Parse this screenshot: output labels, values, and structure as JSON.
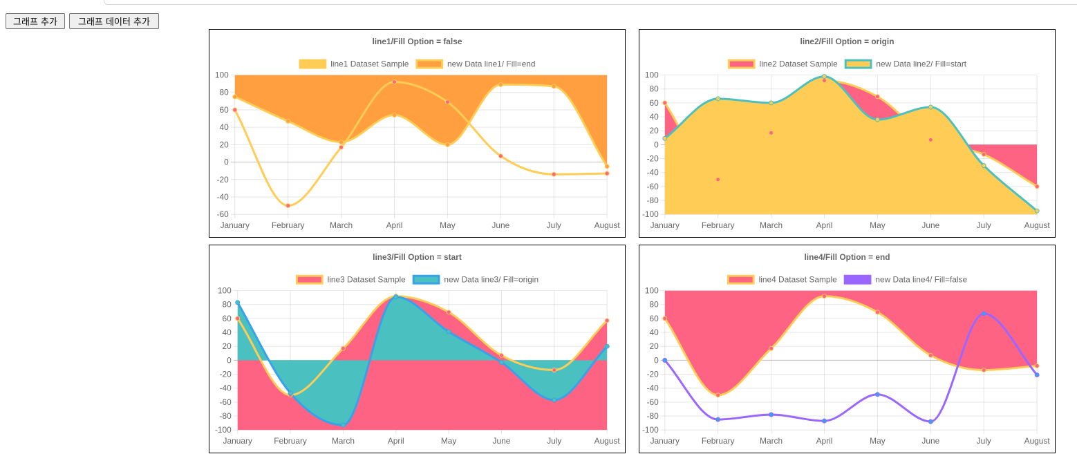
{
  "buttons": {
    "add_graph": "그래프 추가",
    "add_graph_data": "그래프 데이터 추가"
  },
  "chart_data": [
    {
      "type": "line",
      "title": "line1/Fill Option = false",
      "categories": [
        "January",
        "February",
        "March",
        "April",
        "May",
        "June",
        "July",
        "August"
      ],
      "ylim": [
        -60,
        100
      ],
      "yticks": [
        -60,
        -40,
        -20,
        0,
        20,
        40,
        60,
        80,
        100
      ],
      "grid": true,
      "legend": "top",
      "series": [
        {
          "name": "line1 Dataset Sample",
          "values": [
            60,
            -50,
            17,
            92,
            69,
            7,
            -14,
            -13
          ],
          "fill": "none",
          "line_color": "#ffcd56",
          "fill_color": "#ffcd56",
          "point_color": "#ff6384"
        },
        {
          "name": "new Data line1/ Fill=end",
          "values": [
            75,
            47,
            23,
            54,
            20,
            89,
            87,
            -5
          ],
          "fill": "end",
          "line_color": "#ffcd56",
          "fill_color": "#ff9f40",
          "point_color": "#ff9f40"
        }
      ]
    },
    {
      "type": "line",
      "title": "line2/Fill Option = origin",
      "categories": [
        "January",
        "February",
        "March",
        "April",
        "May",
        "June",
        "July",
        "August"
      ],
      "ylim": [
        -100,
        100
      ],
      "yticks": [
        -100,
        -80,
        -60,
        -40,
        -20,
        0,
        20,
        40,
        60,
        80,
        100
      ],
      "grid": true,
      "legend": "top",
      "series": [
        {
          "name": "line2 Dataset Sample",
          "values": [
            60,
            -50,
            17,
            92,
            69,
            7,
            -14,
            -60
          ],
          "fill": "origin",
          "line_color": "#ffcd56",
          "fill_color": "#ff6384",
          "point_color": "#ff6384"
        },
        {
          "name": "new Data line2/ Fill=start",
          "values": [
            9,
            66,
            60,
            98,
            36,
            54,
            -30,
            -95
          ],
          "fill": "start",
          "line_color": "#4bc0c0",
          "fill_color": "#ffcd56",
          "point_color": "#ffcd56"
        }
      ]
    },
    {
      "type": "line",
      "title": "line3/Fill Option = start",
      "categories": [
        "January",
        "February",
        "March",
        "April",
        "May",
        "June",
        "July",
        "August"
      ],
      "ylim": [
        -100,
        100
      ],
      "yticks": [
        -100,
        -80,
        -60,
        -40,
        -20,
        0,
        20,
        40,
        60,
        80,
        100
      ],
      "grid": true,
      "legend": "top",
      "series": [
        {
          "name": "line3 Dataset Sample",
          "values": [
            60,
            -50,
            17,
            92,
            69,
            7,
            -14,
            57
          ],
          "fill": "start",
          "line_color": "#ffcd56",
          "fill_color": "#ff6384",
          "point_color": "#ff6384"
        },
        {
          "name": "new Data line3/ Fill=origin",
          "values": [
            83,
            -47,
            -93,
            91,
            41,
            -3,
            -57,
            20
          ],
          "fill": "origin",
          "line_color": "#36a2eb",
          "fill_color": "#4bc0c0",
          "point_color": "#4bc0c0"
        }
      ]
    },
    {
      "type": "line",
      "title": "line4/Fill Option = end",
      "categories": [
        "January",
        "February",
        "March",
        "April",
        "May",
        "June",
        "July",
        "August"
      ],
      "ylim": [
        -100,
        100
      ],
      "yticks": [
        -100,
        -80,
        -60,
        -40,
        -20,
        0,
        20,
        40,
        60,
        80,
        100
      ],
      "grid": true,
      "legend": "top",
      "series": [
        {
          "name": "line4 Dataset Sample",
          "values": [
            60,
            -50,
            17,
            92,
            69,
            7,
            -14,
            -8
          ],
          "fill": "end",
          "line_color": "#ffcd56",
          "fill_color": "#ff6384",
          "point_color": "#ff6384"
        },
        {
          "name": "new Data line4/ Fill=false",
          "values": [
            0,
            -85,
            -78,
            -87,
            -49,
            -88,
            67,
            -21
          ],
          "fill": "none",
          "line_color": "#9966ff",
          "fill_color": "#9966ff",
          "point_color": "#36a2eb"
        }
      ]
    }
  ]
}
